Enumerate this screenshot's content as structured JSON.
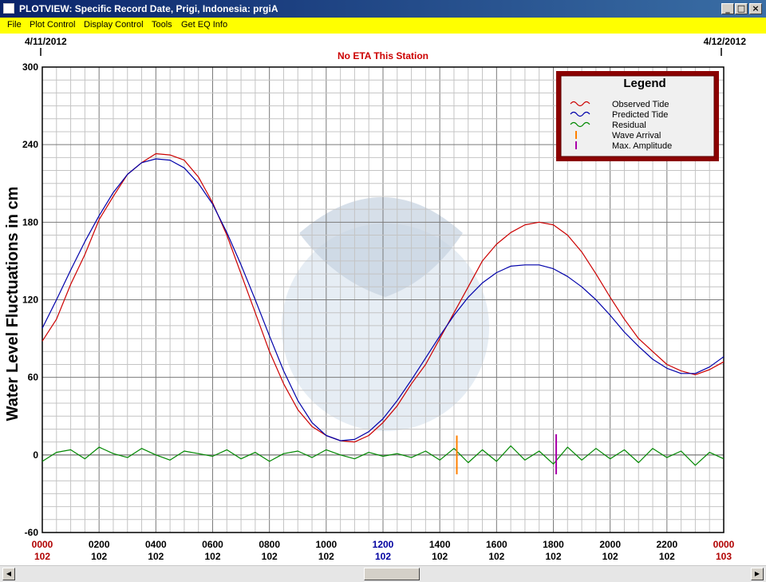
{
  "window": {
    "title": "PLOTVIEW: Specific Record Date, Prigi, Indonesia: prgiA",
    "minimize_glyph": "_",
    "maximize_glyph": "□",
    "close_glyph": "×"
  },
  "menu": {
    "items": [
      "File",
      "Plot Control",
      "Display Control",
      "Tools",
      "Get EQ Info"
    ]
  },
  "header": {
    "date_left": "4/11/2012",
    "date_right": "4/12/2012",
    "eta_message": "No ETA This Station"
  },
  "chart_data": {
    "type": "line",
    "ylabel": "Water Level Fluctuations in cm",
    "ylim": [
      -60,
      300
    ],
    "yticks": [
      -60,
      0,
      60,
      120,
      180,
      240,
      300
    ],
    "xlim": [
      0,
      24
    ],
    "xticks": [
      {
        "time": "0000",
        "day": "102",
        "color": "#b00000"
      },
      {
        "time": "0200",
        "day": "102",
        "color": "#000000"
      },
      {
        "time": "0400",
        "day": "102",
        "color": "#000000"
      },
      {
        "time": "0600",
        "day": "102",
        "color": "#000000"
      },
      {
        "time": "0800",
        "day": "102",
        "color": "#000000"
      },
      {
        "time": "1000",
        "day": "102",
        "color": "#000000"
      },
      {
        "time": "1200",
        "day": "102",
        "color": "#0000a0"
      },
      {
        "time": "1400",
        "day": "102",
        "color": "#000000"
      },
      {
        "time": "1600",
        "day": "102",
        "color": "#000000"
      },
      {
        "time": "1800",
        "day": "102",
        "color": "#000000"
      },
      {
        "time": "2000",
        "day": "102",
        "color": "#000000"
      },
      {
        "time": "2200",
        "day": "102",
        "color": "#000000"
      },
      {
        "time": "0000",
        "day": "103",
        "color": "#b00000"
      }
    ],
    "grid": true,
    "legend": {
      "title": "Legend",
      "placement": "top-right",
      "entries": [
        {
          "label": "Observed Tide",
          "color": "#cc0000",
          "kind": "line"
        },
        {
          "label": "Predicted Tide",
          "color": "#0000aa",
          "kind": "line"
        },
        {
          "label": "Residual",
          "color": "#008800",
          "kind": "line"
        },
        {
          "label": "Wave Arrival",
          "color": "#ff8000",
          "kind": "marker"
        },
        {
          "label": "Max. Amplitude",
          "color": "#aa00aa",
          "kind": "marker"
        }
      ]
    },
    "series": [
      {
        "name": "Observed Tide",
        "color": "#cc0000",
        "x": [
          0,
          0.5,
          1,
          1.5,
          2,
          2.5,
          3,
          3.5,
          4,
          4.5,
          5,
          5.5,
          6,
          6.5,
          7,
          7.5,
          8,
          8.5,
          9,
          9.5,
          10,
          10.5,
          11,
          11.5,
          12,
          12.5,
          13,
          13.5,
          14,
          14.5,
          15,
          15.5,
          16,
          16.5,
          17,
          17.5,
          18,
          18.5,
          19,
          19.5,
          20,
          20.5,
          21,
          21.5,
          22,
          22.5,
          23,
          23.5,
          24
        ],
        "values": [
          88,
          105,
          132,
          155,
          182,
          200,
          217,
          226,
          233,
          232,
          228,
          215,
          195,
          170,
          140,
          110,
          80,
          55,
          35,
          22,
          15,
          11,
          10,
          15,
          25,
          38,
          55,
          70,
          90,
          110,
          130,
          150,
          163,
          172,
          178,
          180,
          178,
          170,
          157,
          140,
          122,
          105,
          90,
          80,
          70,
          65,
          62,
          66,
          72
        ]
      },
      {
        "name": "Predicted Tide",
        "color": "#0000aa",
        "x": [
          0,
          0.5,
          1,
          1.5,
          2,
          2.5,
          3,
          3.5,
          4,
          4.5,
          5,
          5.5,
          6,
          6.5,
          7,
          7.5,
          8,
          8.5,
          9,
          9.5,
          10,
          10.5,
          11,
          11.5,
          12,
          12.5,
          13,
          13.5,
          14,
          14.5,
          15,
          15.5,
          16,
          16.5,
          17,
          17.5,
          18,
          18.5,
          19,
          19.5,
          20,
          20.5,
          21,
          21.5,
          22,
          22.5,
          23,
          23.5,
          24
        ],
        "values": [
          98,
          120,
          143,
          165,
          185,
          203,
          217,
          226,
          229,
          228,
          222,
          210,
          194,
          172,
          147,
          120,
          92,
          65,
          42,
          25,
          15,
          11,
          12,
          18,
          28,
          42,
          58,
          75,
          92,
          108,
          122,
          133,
          141,
          146,
          147,
          147,
          144,
          138,
          130,
          120,
          108,
          95,
          84,
          74,
          67,
          63,
          63,
          68,
          76
        ]
      },
      {
        "name": "Residual",
        "color": "#008800",
        "x": [
          0,
          0.5,
          1,
          1.5,
          2,
          2.5,
          3,
          3.5,
          4,
          4.5,
          5,
          5.5,
          6,
          6.5,
          7,
          7.5,
          8,
          8.5,
          9,
          9.5,
          10,
          10.5,
          11,
          11.5,
          12,
          12.5,
          13,
          13.5,
          14,
          14.5,
          15,
          15.5,
          16,
          16.5,
          17,
          17.5,
          18,
          18.5,
          19,
          19.5,
          20,
          20.5,
          21,
          21.5,
          22,
          22.5,
          23,
          23.5,
          24
        ],
        "values": [
          -5,
          2,
          4,
          -3,
          6,
          1,
          -2,
          5,
          0,
          -4,
          3,
          1,
          -1,
          4,
          -3,
          2,
          -5,
          1,
          3,
          -2,
          4,
          0,
          -3,
          2,
          -1,
          1,
          -2,
          3,
          -4,
          5,
          -6,
          4,
          -5,
          7,
          -4,
          3,
          -7,
          6,
          -4,
          5,
          -3,
          4,
          -6,
          5,
          -2,
          3,
          -8,
          2,
          -3
        ]
      }
    ],
    "markers": [
      {
        "name": "Wave Arrival",
        "x": 14.6,
        "y_range": [
          -15,
          15
        ],
        "color": "#ff8000"
      },
      {
        "name": "Max. Amplitude",
        "x": 18.1,
        "y_range": [
          -15,
          16
        ],
        "color": "#aa00aa"
      }
    ]
  }
}
